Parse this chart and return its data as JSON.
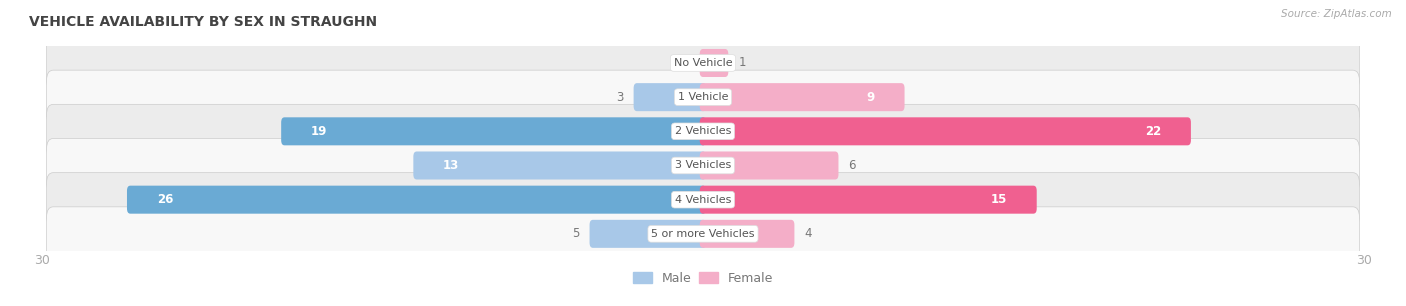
{
  "title": "VEHICLE AVAILABILITY BY SEX IN STRAUGHN",
  "source": "Source: ZipAtlas.com",
  "categories": [
    "No Vehicle",
    "1 Vehicle",
    "2 Vehicles",
    "3 Vehicles",
    "4 Vehicles",
    "5 or more Vehicles"
  ],
  "male_values": [
    0,
    3,
    19,
    13,
    26,
    5
  ],
  "female_values": [
    1,
    9,
    22,
    6,
    15,
    4
  ],
  "male_color_light": "#a8c8e8",
  "male_color_dark": "#6aaad4",
  "female_color_light": "#f4aec8",
  "female_color_dark": "#f06090",
  "male_dark_rows": [
    2,
    4
  ],
  "female_dark_rows": [
    2,
    4
  ],
  "xlim": [
    -30,
    30
  ],
  "row_bg_odd": "#ececec",
  "row_bg_even": "#f8f8f8",
  "fig_bg": "#ffffff",
  "label_color_outside": "#777777",
  "label_color_inside": "#ffffff",
  "category_label_color": "#555555",
  "title_color": "#444444",
  "source_color": "#aaaaaa",
  "axis_label_color": "#aaaaaa",
  "bar_height": 0.52,
  "fig_width": 14.06,
  "fig_height": 3.06,
  "dpi": 100,
  "inside_threshold": 8
}
